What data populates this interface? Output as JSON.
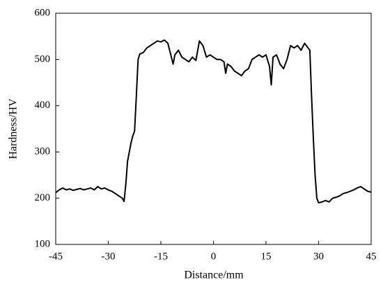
{
  "chart_data": {
    "type": "line",
    "x_label": "Distance/mm",
    "y_label": "Hardness/HV",
    "xlim": [
      -45,
      45
    ],
    "xticks": [
      -45,
      -30,
      -15,
      0,
      15,
      30,
      45
    ],
    "ylim": [
      100,
      600
    ],
    "yticks": [
      100,
      200,
      300,
      400,
      500,
      600
    ],
    "grid": false,
    "x": [
      -45,
      -44,
      -43,
      -42,
      -41,
      -40,
      -39,
      -38,
      -37,
      -36,
      -35,
      -34,
      -33,
      -32,
      -31,
      -30,
      -29,
      -28,
      -27,
      -26,
      -25.5,
      -25,
      -24.5,
      -24,
      -23.5,
      -23,
      -22.5,
      -22,
      -21.5,
      -21,
      -20,
      -19,
      -18,
      -17,
      -16,
      -15,
      -14,
      -13,
      -12,
      -11.5,
      -11,
      -10,
      -9,
      -8,
      -7,
      -6,
      -5,
      -4,
      -3,
      -2,
      -1,
      0,
      1,
      2,
      3,
      3.5,
      4,
      5,
      6,
      7,
      8,
      9,
      10,
      11,
      12,
      13,
      14,
      15,
      16,
      16.5,
      17,
      18,
      19,
      20,
      21,
      22,
      23,
      24,
      25,
      26,
      27,
      27.5,
      28,
      28.5,
      29,
      29.5,
      30,
      31,
      32,
      33,
      34,
      35,
      36,
      37,
      38,
      39,
      40,
      41,
      42,
      43,
      44,
      45
    ],
    "series": [
      {
        "color": "#000000",
        "values": [
          212,
          218,
          222,
          218,
          220,
          217,
          219,
          221,
          218,
          220,
          222,
          218,
          225,
          220,
          222,
          218,
          215,
          210,
          205,
          200,
          193,
          230,
          280,
          300,
          320,
          335,
          345,
          420,
          500,
          512,
          515,
          525,
          530,
          535,
          540,
          538,
          542,
          535,
          505,
          490,
          510,
          520,
          505,
          500,
          495,
          505,
          498,
          540,
          530,
          505,
          510,
          505,
          500,
          500,
          495,
          470,
          490,
          485,
          475,
          470,
          465,
          475,
          480,
          500,
          505,
          510,
          505,
          510,
          485,
          445,
          505,
          510,
          490,
          480,
          500,
          530,
          525,
          530,
          520,
          535,
          525,
          520,
          420,
          330,
          250,
          200,
          190,
          192,
          195,
          192,
          200,
          202,
          205,
          210,
          212,
          215,
          218,
          222,
          225,
          220,
          215,
          213
        ]
      }
    ]
  }
}
